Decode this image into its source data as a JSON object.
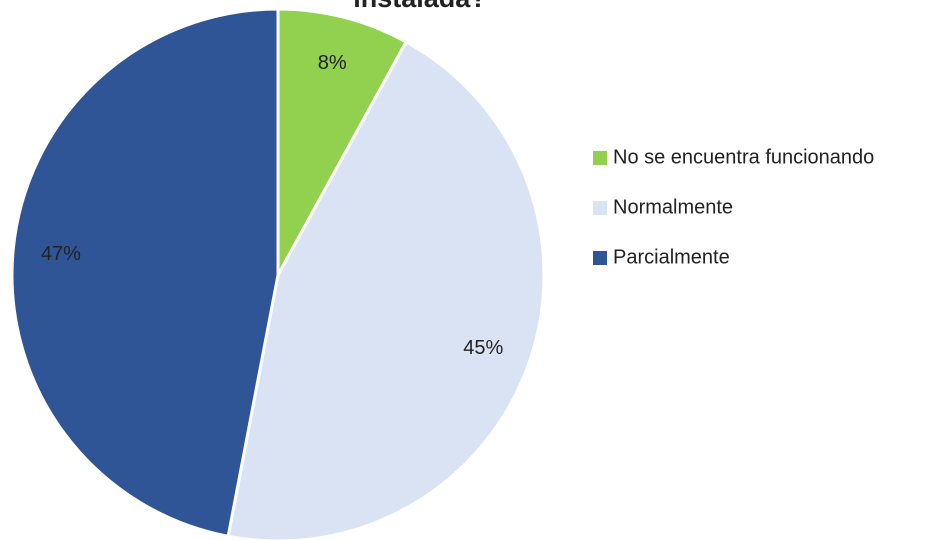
{
  "chart_data": {
    "type": "pie",
    "title": "instalada?",
    "categories": [
      "No se encuentra funcionando",
      "Normalmente",
      "Parcialmente"
    ],
    "values": [
      8,
      45,
      47
    ],
    "value_labels": [
      "8%",
      "45%",
      "47%"
    ],
    "colors": [
      "#92d050",
      "#dae3f3",
      "#2f5597"
    ],
    "legend": "right"
  }
}
